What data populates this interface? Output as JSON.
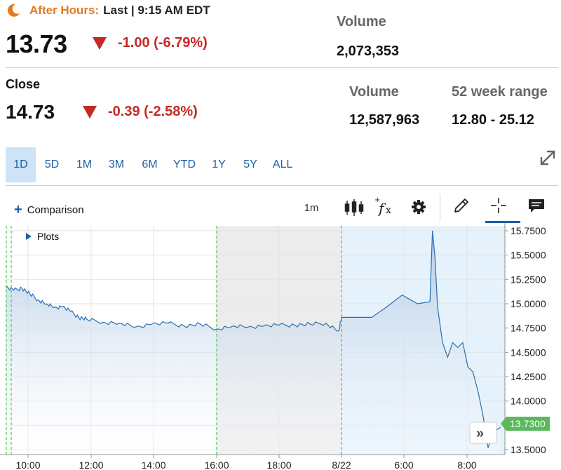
{
  "after_hours": {
    "label": "After Hours:",
    "status": "Last | 9:15 AM EDT",
    "price": "13.73",
    "change": "-1.00 (-6.79%)",
    "volume_label": "Volume",
    "volume": "2,073,353"
  },
  "close": {
    "label": "Close",
    "price": "14.73",
    "change": "-0.39 (-2.58%)",
    "volume_label": "Volume",
    "volume": "12,587,963",
    "range_label": "52 week range",
    "range": "12.80 - 25.12"
  },
  "ranges": [
    "1D",
    "5D",
    "1M",
    "3M",
    "6M",
    "YTD",
    "1Y",
    "5Y",
    "ALL"
  ],
  "active_range": "1D",
  "toolbar": {
    "comparison_label": "Comparison",
    "interval": "1m",
    "plots_label": "Plots",
    "icons": [
      "candlestick-icon",
      "function-icon",
      "gear-icon",
      "pencil-icon",
      "crosshair-icon",
      "comment-icon",
      "expand-icon",
      "double-chevron-right-icon"
    ]
  },
  "colors": {
    "accent": "#1a5fa8",
    "down": "#c62828",
    "after_hours": "#e07b1d",
    "line": "#2a6fb0",
    "last_badge": "#5cb85c",
    "session_marker": "#44cc44"
  },
  "chart_data": {
    "type": "area",
    "x_ticks": [
      "10:00",
      "12:00",
      "14:00",
      "16:00",
      "18:00",
      "8/22",
      "6:00",
      "8:00"
    ],
    "y_ticks": [
      "15.7500",
      "15.5000",
      "15.2500",
      "15.0000",
      "14.7500",
      "14.5000",
      "14.2500",
      "14.0000",
      "13.7500",
      "13.5000"
    ],
    "ylim": [
      13.45,
      15.8
    ],
    "last_value_label": "13.7300",
    "series": [
      {
        "points": [
          [
            "09:30",
            15.17
          ],
          [
            "09:45",
            15.14
          ],
          [
            "10:00",
            15.16
          ],
          [
            "10:15",
            15.1
          ],
          [
            "10:30",
            15.04
          ],
          [
            "10:45",
            15.0
          ],
          [
            "11:00",
            14.96
          ],
          [
            "11:15",
            14.97
          ],
          [
            "11:30",
            14.92
          ],
          [
            "11:45",
            14.86
          ],
          [
            "12:00",
            14.84
          ],
          [
            "12:30",
            14.81
          ],
          [
            "13:00",
            14.8
          ],
          [
            "13:30",
            14.76
          ],
          [
            "14:00",
            14.79
          ],
          [
            "14:30",
            14.8
          ],
          [
            "15:00",
            14.77
          ],
          [
            "15:30",
            14.79
          ],
          [
            "16:00",
            14.74
          ],
          [
            "16:30",
            14.77
          ],
          [
            "17:00",
            14.76
          ],
          [
            "17:30",
            14.77
          ],
          [
            "18:00",
            14.78
          ],
          [
            "18:30",
            14.78
          ],
          [
            "19:00",
            14.79
          ],
          [
            "19:30",
            14.8
          ],
          [
            "19:55",
            14.72
          ],
          [
            "8/22 04:00",
            14.86
          ],
          [
            "04:30",
            14.86
          ],
          [
            "05:00",
            14.86
          ],
          [
            "05:30",
            14.97
          ],
          [
            "06:00",
            15.09
          ],
          [
            "06:30",
            15.0
          ],
          [
            "06:55",
            15.02
          ],
          [
            "07:00",
            15.75
          ],
          [
            "07:05",
            15.48
          ],
          [
            "07:10",
            14.97
          ],
          [
            "07:20",
            14.6
          ],
          [
            "07:30",
            14.45
          ],
          [
            "07:40",
            14.6
          ],
          [
            "07:50",
            14.55
          ],
          [
            "08:00",
            14.6
          ],
          [
            "08:10",
            14.35
          ],
          [
            "08:20",
            14.3
          ],
          [
            "08:30",
            14.1
          ],
          [
            "08:40",
            13.85
          ],
          [
            "08:50",
            13.52
          ],
          [
            "09:00",
            13.68
          ],
          [
            "09:15",
            13.73
          ]
        ]
      }
    ]
  }
}
